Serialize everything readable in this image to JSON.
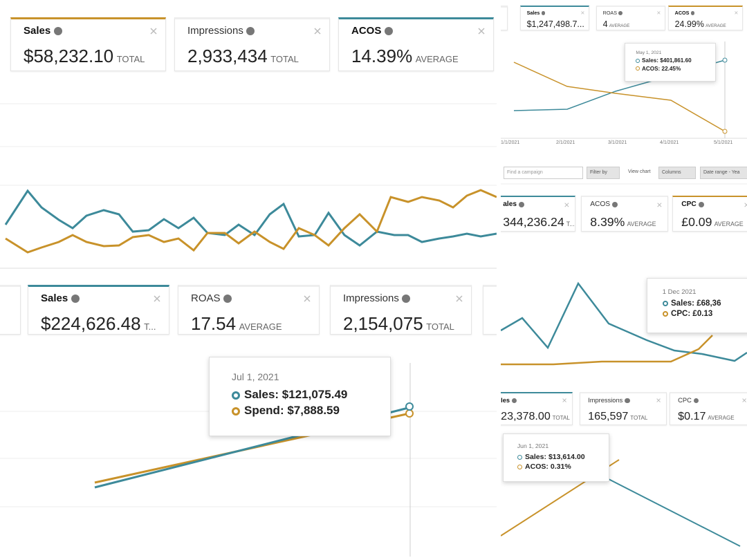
{
  "panels": [
    {
      "cards": [
        {
          "label": "Sales",
          "value": "$58,232.10",
          "unit": "TOTAL",
          "accent": "#c8922a"
        },
        {
          "label": "Impressions",
          "value": "2,933,434",
          "unit": "TOTAL"
        },
        {
          "label": "ACOS",
          "value": "14.39%",
          "unit": "AVERAGE",
          "accent": "#3d8a9a"
        }
      ]
    },
    {
      "cards": [
        {
          "label": "Sales",
          "value": "$224,626.48",
          "unit": "T...",
          "accent": "#3d8a9a"
        },
        {
          "label": "ROAS",
          "value": "17.54",
          "unit": "AVERAGE"
        },
        {
          "label": "Impressions",
          "value": "2,154,075",
          "unit": "TOTAL"
        }
      ],
      "tooltip": {
        "date": "Jul 1, 2021",
        "lines": [
          "Sales: $121,075.49",
          "Spend: $7,888.59"
        ]
      }
    },
    {
      "cards": [
        {
          "label": "Sales",
          "value": "$1,247,498.7...",
          "accent": "#3d8a9a"
        },
        {
          "label": "ROAS",
          "value": "4",
          "unit": "AVERAGE"
        },
        {
          "label": "ACOS",
          "value": "24.99%",
          "unit": "AVERAGE",
          "accent": "#c8922a"
        }
      ],
      "tooltip": {
        "date": "May 1, 2021",
        "lines": [
          "Sales: $401,861.60",
          "ACOS: 22.45%"
        ]
      },
      "x_labels": [
        "1/1/2021",
        "2/1/2021",
        "3/1/2021",
        "4/1/2021",
        "5/1/2021"
      ]
    },
    {
      "toolbar": {
        "search": "Find a campaign",
        "filter": "Filter by",
        "view": "View chart",
        "columns": "Columns",
        "date": "Date range - Yea"
      },
      "cards": [
        {
          "label": "ales",
          "value": "344,236.24",
          "unit": "T...",
          "accent": "#3d8a9a"
        },
        {
          "label": "ACOS",
          "value": "8.39%",
          "unit": "AVERAGE"
        },
        {
          "label": "CPC",
          "value": "£0.09",
          "unit": "AVERAGE",
          "accent": "#c8922a"
        }
      ],
      "tooltip": {
        "date": "1 Dec 2021",
        "lines": [
          "Sales: £68,36",
          "CPC: £0.13"
        ]
      }
    },
    {
      "cards": [
        {
          "label": "les",
          "value": "23,378.00",
          "unit": "TOTAL",
          "accent": "#3d8a9a"
        },
        {
          "label": "Impressions",
          "value": "165,597",
          "unit": "TOTAL"
        },
        {
          "label": "CPC",
          "value": "$0.17",
          "unit": "AVERAGE"
        }
      ],
      "tooltip": {
        "date": "Jun 1, 2021",
        "lines": [
          "Sales: $13,614.00",
          "ACOS: 0.31%"
        ]
      }
    }
  ]
}
